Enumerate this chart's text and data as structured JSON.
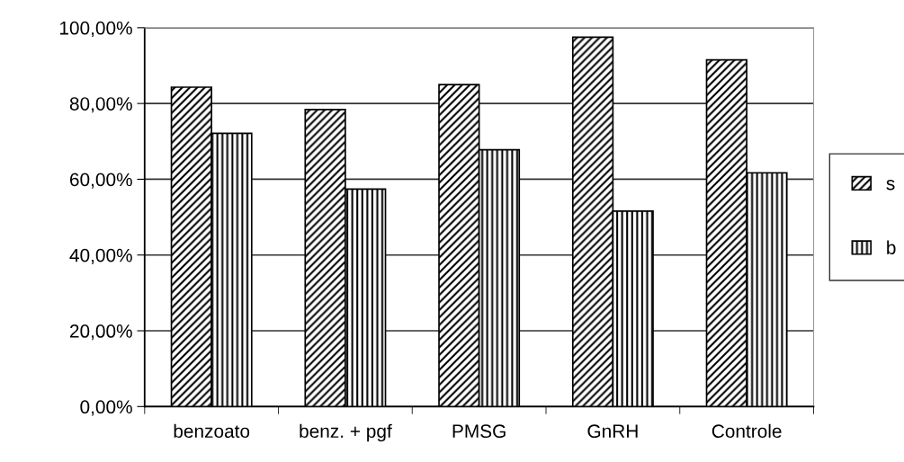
{
  "chart_data": {
    "type": "bar",
    "categories": [
      "benzoato",
      "benz. + pgf",
      "PMSG",
      "GnRH",
      "Controle"
    ],
    "series": [
      {
        "name": "s",
        "color": "#000000",
        "values": [
          84.3,
          78.4,
          85.0,
          97.5,
          91.5
        ]
      },
      {
        "name": "b",
        "color": "#000000",
        "values": [
          72.1,
          57.4,
          67.8,
          51.6,
          61.7
        ]
      }
    ],
    "ylim": [
      0,
      100
    ],
    "yticks": [
      {
        "value": 0,
        "label": "0,00%"
      },
      {
        "value": 20,
        "label": "20,00%"
      },
      {
        "value": 40,
        "label": "40,00%"
      },
      {
        "value": 60,
        "label": "60,00%"
      },
      {
        "value": 80,
        "label": "80,00%"
      },
      {
        "value": 100,
        "label": "100,00%"
      }
    ],
    "grid": "y",
    "legend": "right"
  }
}
